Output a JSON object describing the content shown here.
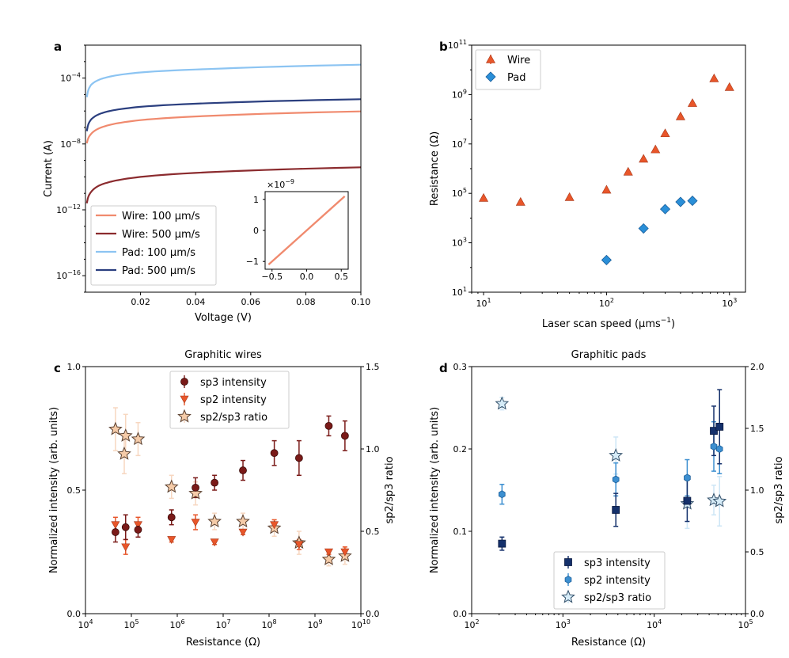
{
  "chart_data": [
    {
      "panel": "a",
      "type": "line",
      "title": "",
      "xlabel": "Voltage (V)",
      "ylabel": "Current (A)",
      "xscale": "linear",
      "yscale": "log",
      "xlim": [
        0.0,
        0.1
      ],
      "ylim": [
        1e-17,
        0.01
      ],
      "xticks": [
        0.02,
        0.04,
        0.06,
        0.08,
        0.1
      ],
      "xtick_labels": [
        "0.02",
        "0.04",
        "0.06",
        "0.08",
        "0.10"
      ],
      "yticks": [
        1e-16,
        1e-12,
        1e-08,
        0.0001
      ],
      "ytick_labels": [
        "10",
        "10",
        "10",
        "10"
      ],
      "ytick_exponents": [
        "−16",
        "−12",
        "−8",
        "−4"
      ],
      "series": [
        {
          "name": "Wire: 100 µm/s",
          "color": "#f08a6e",
          "x": [
            0.0005,
            0.001,
            0.002,
            0.005,
            0.01,
            0.02,
            0.05,
            0.1
          ],
          "y": [
            1.1e-08,
            2.2e-08,
            4e-08,
            9e-08,
            1.6e-07,
            2.8e-07,
            5.5e-07,
            9.5e-07
          ]
        },
        {
          "name": "Wire: 500 µm/s",
          "color": "#8b2b2e",
          "x": [
            0.0005,
            0.001,
            0.002,
            0.005,
            0.01,
            0.02,
            0.05,
            0.1
          ],
          "y": [
            2.5e-12,
            6e-12,
            1.2e-11,
            3e-11,
            5.5e-11,
            1e-10,
            2.1e-10,
            3.8e-10
          ]
        },
        {
          "name": "Pad: 100 µm/s",
          "color": "#8cc4f2",
          "x": [
            0.0005,
            0.001,
            0.002,
            0.005,
            0.01,
            0.02,
            0.05,
            0.1
          ],
          "y": [
            7e-06,
            1.8e-05,
            3.8e-05,
            8e-05,
            0.000135,
            0.00022,
            0.00038,
            0.00065
          ]
        },
        {
          "name": "Pad: 500 µm/s",
          "color": "#2b3f7f",
          "x": [
            0.0005,
            0.001,
            0.002,
            0.005,
            0.01,
            0.02,
            0.05,
            0.1
          ],
          "y": [
            6e-08,
            1.5e-07,
            3e-07,
            6.5e-07,
            1.1e-06,
            1.8e-06,
            3.2e-06,
            5.2e-06
          ]
        }
      ],
      "legend": "lower-left",
      "inset": {
        "type": "line",
        "color": "#f08a6e",
        "x": [
          -0.55,
          0.55
        ],
        "y": [
          -1.1,
          1.1
        ],
        "multiplier": "×10",
        "multiplier_exp": "−9",
        "xticks": [
          "−0.5",
          "0.0",
          "0.5"
        ],
        "yticks": [
          "1",
          "0",
          "−1"
        ]
      }
    },
    {
      "panel": "b",
      "type": "scatter",
      "title": "",
      "xlabel": "Laser scan speed (µms",
      "xlabel_exp": "−1",
      "xlabel_end": ")",
      "ylabel": "Resistance (Ω)",
      "xscale": "log",
      "yscale": "log",
      "xlim": [
        8,
        1350
      ],
      "ylim": [
        10,
        100000000000.0
      ],
      "xtick_labels": [
        "10",
        "10",
        "10"
      ],
      "xtick_exponents": [
        "1",
        "2",
        "3"
      ],
      "ytick_labels": [
        "10",
        "10",
        "10",
        "10",
        "10",
        "10"
      ],
      "ytick_exponents": [
        "1",
        "3",
        "5",
        "7",
        "9",
        "11"
      ],
      "series": [
        {
          "name": "Wire",
          "marker": "triangle",
          "color": "#e8562a",
          "x": [
            10,
            20,
            50,
            100,
            150,
            200,
            250,
            300,
            400,
            500,
            750,
            1000
          ],
          "y": [
            65000.0,
            45000.0,
            70000.0,
            140000.0,
            750000.0,
            2500000.0,
            6000000.0,
            27000000.0,
            130000000.0,
            450000000.0,
            4500000000.0,
            2000000000.0
          ]
        },
        {
          "name": "Pad",
          "marker": "diamond",
          "color": "#2a8fd8",
          "x": [
            100,
            200,
            300,
            400,
            500
          ],
          "y": [
            200,
            3800,
            23000.0,
            45000.0,
            50000.0
          ]
        }
      ],
      "legend": "top-left"
    },
    {
      "panel": "c",
      "type": "scatter",
      "title": "Graphitic wires",
      "xlabel": "Resistance (Ω)",
      "ylabel": "Normalized intensity (arb. units)",
      "ylabel_right": "sp2/sp3 ratio",
      "xscale": "log",
      "xlim": [
        10000.0,
        10000000000.0
      ],
      "ylim": [
        0,
        1.0
      ],
      "ylim_right": [
        0,
        1.5
      ],
      "xtick_labels": [
        "10",
        "10",
        "10",
        "10",
        "10",
        "10",
        "10"
      ],
      "xtick_exponents": [
        "4",
        "5",
        "6",
        "7",
        "8",
        "9",
        "10"
      ],
      "ytick_labels": [
        "0.0",
        "0.5",
        "1.0"
      ],
      "ytick_labels_right": [
        "0.0",
        "0.5",
        "1.0",
        "1.5"
      ],
      "series": [
        {
          "name": "sp3 intensity",
          "marker": "circle",
          "color": "#7a1a18",
          "axis": "left",
          "x": [
            45000.0,
            75000.0,
            140000.0,
            750000.0,
            2500000.0,
            6500000.0,
            27000000.0,
            130000000.0,
            450000000.0,
            2000000000.0,
            4500000000.0
          ],
          "y": [
            0.33,
            0.35,
            0.34,
            0.39,
            0.51,
            0.53,
            0.58,
            0.65,
            0.63,
            0.76,
            0.72
          ],
          "err": [
            0.04,
            0.05,
            0.03,
            0.03,
            0.04,
            0.03,
            0.04,
            0.05,
            0.07,
            0.04,
            0.06
          ]
        },
        {
          "name": "sp2 intensity",
          "marker": "triangle-down",
          "color": "#e8562a",
          "axis": "left",
          "x": [
            45000.0,
            75000.0,
            140000.0,
            750000.0,
            2500000.0,
            6500000.0,
            27000000.0,
            130000000.0,
            450000000.0,
            2000000000.0,
            4500000000.0
          ],
          "y": [
            0.36,
            0.27,
            0.36,
            0.3,
            0.37,
            0.29,
            0.33,
            0.36,
            0.28,
            0.25,
            0.25
          ],
          "err": [
            0.03,
            0.03,
            0.03,
            0.01,
            0.03,
            0.01,
            0.01,
            0.02,
            0.02,
            0.01,
            0.02
          ]
        },
        {
          "name": "sp2/sp3 ratio",
          "marker": "star",
          "color": "#f5cba8",
          "axis": "right",
          "x": [
            45000.0,
            75000.0,
            70000.0,
            140000.0,
            750000.0,
            2500000.0,
            6500000.0,
            27000000.0,
            130000000.0,
            450000000.0,
            2000000000.0,
            4500000000.0
          ],
          "y": [
            1.12,
            1.08,
            0.97,
            1.06,
            0.77,
            0.73,
            0.56,
            0.56,
            0.52,
            0.43,
            0.33,
            0.35
          ],
          "err": [
            0.13,
            0.13,
            0.12,
            0.1,
            0.07,
            0.07,
            0.05,
            0.05,
            0.05,
            0.07,
            0.04,
            0.05
          ]
        }
      ],
      "legend": "top-center"
    },
    {
      "panel": "d",
      "type": "scatter",
      "title": "Graphitic pads",
      "xlabel": "Resistance (Ω)",
      "ylabel": "Normalized intensity (arb. units)",
      "ylabel_right": "sp2/sp3 ratio",
      "xscale": "log",
      "xlim": [
        100,
        100000.0
      ],
      "ylim": [
        0,
        0.3
      ],
      "ylim_right": [
        0,
        2.0
      ],
      "xtick_labels": [
        "10",
        "10",
        "10",
        "10"
      ],
      "xtick_exponents": [
        "2",
        "3",
        "4",
        "5"
      ],
      "ytick_labels": [
        "0.0",
        "0.1",
        "0.2",
        "0.3"
      ],
      "ytick_labels_right": [
        "0.0",
        "0.5",
        "1.0",
        "1.5",
        "2.0"
      ],
      "series": [
        {
          "name": "sp3 intensity",
          "marker": "square",
          "color": "#14306b",
          "axis": "left",
          "x": [
            215,
            3800,
            23000,
            45000,
            52000
          ],
          "y": [
            0.085,
            0.126,
            0.137,
            0.222,
            0.227
          ],
          "err": [
            0.008,
            0.02,
            0.025,
            0.03,
            0.045
          ]
        },
        {
          "name": "sp2 intensity",
          "marker": "hexagon",
          "color": "#3c8fd0",
          "axis": "left",
          "x": [
            215,
            3800,
            23000,
            45000,
            52000
          ],
          "y": [
            0.145,
            0.163,
            0.165,
            0.203,
            0.2
          ],
          "err": [
            0.012,
            0.02,
            0.022,
            0.03,
            0.03
          ]
        },
        {
          "name": "sp2/sp3 ratio",
          "marker": "star",
          "color": "#d6ecf8",
          "axis": "right",
          "x": [
            215,
            3800,
            23000,
            45000,
            52000
          ],
          "y": [
            1.7,
            1.28,
            0.89,
            0.92,
            0.91
          ],
          "err": [
            0.05,
            0.15,
            0.2,
            0.12,
            0.2
          ]
        }
      ],
      "legend": "bottom-center"
    }
  ]
}
